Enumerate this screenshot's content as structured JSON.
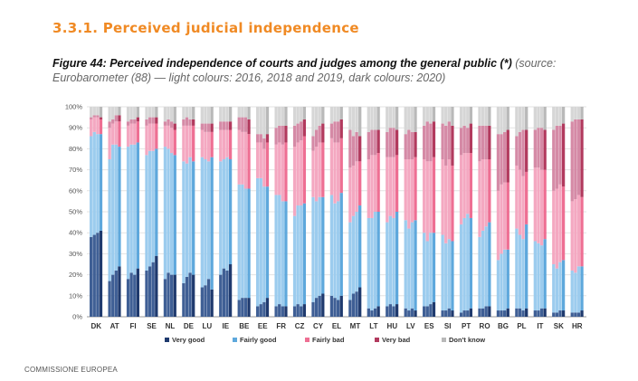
{
  "section_title": "3.3.1. Perceived judicial independence",
  "caption": {
    "label": "Figure 44: Perceived independence of courts and judges among the general public (*)",
    "source": " (source: Eurobarometer (88) — light colours: 2016, 2018 and 2019, dark colours: 2020)"
  },
  "footer": "COMMISSIONE EUROPEA",
  "colors": {
    "very_good": "#1f3a6e",
    "fairly_good": "#5ea8dc",
    "fairly_bad": "#ee6f93",
    "very_bad": "#b23a5e",
    "dont_know": "#b9b9b9",
    "light_very_good": "#3f5f95",
    "light_fairly_good": "#9cccee",
    "light_fairly_bad": "#f4a8c1",
    "light_very_bad": "#d58aa6",
    "light_dont_know": "#d6d6d6"
  },
  "chart_data": {
    "type": "bar",
    "stacked": true,
    "ylim": [
      0,
      100
    ],
    "y_ticks": [
      "0%",
      "10%",
      "20%",
      "30%",
      "40%",
      "50%",
      "60%",
      "70%",
      "80%",
      "90%",
      "100%"
    ],
    "grid": true,
    "legend_position": "bottom",
    "categories": [
      "DK",
      "AT",
      "FI",
      "SE",
      "NL",
      "DE",
      "LU",
      "IE",
      "BE",
      "EE",
      "FR",
      "CZ",
      "CY",
      "EL",
      "MT",
      "LT",
      "HU",
      "LV",
      "ES",
      "SI",
      "PT",
      "RO",
      "BG",
      "PL",
      "IT",
      "SK",
      "HR"
    ],
    "years": [
      "2016",
      "2018",
      "2019",
      "2020"
    ],
    "series": [
      {
        "name": "Very good",
        "key": "very_good"
      },
      {
        "name": "Fairly good",
        "key": "fairly_good"
      },
      {
        "name": "Fairly bad",
        "key": "fairly_bad"
      },
      {
        "name": "Very bad",
        "key": "very_bad"
      },
      {
        "name": "Don't know",
        "key": "dont_know"
      }
    ],
    "values": {
      "DK": [
        [
          38,
          48,
          8,
          1,
          5
        ],
        [
          39,
          49,
          7,
          1,
          4
        ],
        [
          40,
          47,
          8,
          1,
          4
        ],
        [
          41,
          46,
          7,
          1,
          5
        ]
      ],
      "AT": [
        [
          17,
          58,
          15,
          3,
          7
        ],
        [
          20,
          62,
          10,
          2,
          6
        ],
        [
          22,
          60,
          11,
          3,
          4
        ],
        [
          24,
          57,
          12,
          3,
          4
        ]
      ],
      "FI": [
        [
          18,
          63,
          10,
          2,
          7
        ],
        [
          21,
          61,
          10,
          2,
          6
        ],
        [
          20,
          62,
          10,
          2,
          6
        ],
        [
          23,
          60,
          10,
          2,
          5
        ]
      ],
      "SE": [
        [
          22,
          55,
          14,
          3,
          6
        ],
        [
          24,
          55,
          13,
          3,
          5
        ],
        [
          26,
          53,
          13,
          3,
          5
        ],
        [
          29,
          51,
          12,
          3,
          5
        ]
      ],
      "NL": [
        [
          18,
          63,
          10,
          2,
          7
        ],
        [
          21,
          59,
          11,
          3,
          6
        ],
        [
          20,
          58,
          12,
          3,
          7
        ],
        [
          20,
          57,
          12,
          3,
          8
        ]
      ],
      "DE": [
        [
          16,
          58,
          17,
          3,
          6
        ],
        [
          19,
          54,
          18,
          4,
          5
        ],
        [
          21,
          55,
          15,
          3,
          6
        ],
        [
          20,
          54,
          17,
          3,
          6
        ]
      ],
      "LU": [
        [
          14,
          62,
          13,
          3,
          8
        ],
        [
          15,
          60,
          13,
          4,
          8
        ],
        [
          18,
          56,
          14,
          4,
          8
        ],
        [
          13,
          63,
          12,
          4,
          8
        ]
      ],
      "IE": [
        [
          20,
          54,
          15,
          4,
          7
        ],
        [
          23,
          52,
          14,
          4,
          7
        ],
        [
          22,
          54,
          13,
          4,
          7
        ],
        [
          25,
          50,
          14,
          4,
          7
        ]
      ],
      "BE": [
        [
          8,
          55,
          26,
          6,
          5
        ],
        [
          9,
          54,
          25,
          7,
          5
        ],
        [
          9,
          52,
          27,
          7,
          5
        ],
        [
          9,
          52,
          26,
          7,
          6
        ]
      ],
      "EE": [
        [
          5,
          61,
          17,
          4,
          13
        ],
        [
          6,
          60,
          17,
          4,
          13
        ],
        [
          7,
          55,
          18,
          5,
          15
        ],
        [
          9,
          53,
          21,
          4,
          13
        ]
      ],
      "FR": [
        [
          5,
          53,
          24,
          8,
          10
        ],
        [
          6,
          52,
          25,
          8,
          9
        ],
        [
          5,
          50,
          27,
          9,
          9
        ],
        [
          5,
          50,
          28,
          8,
          9
        ]
      ],
      "CZ": [
        [
          5,
          43,
          33,
          10,
          9
        ],
        [
          6,
          47,
          30,
          9,
          8
        ],
        [
          5,
          48,
          31,
          9,
          7
        ],
        [
          6,
          48,
          32,
          8,
          6
        ]
      ],
      "CY": [
        [
          7,
          50,
          22,
          7,
          14
        ],
        [
          9,
          46,
          26,
          8,
          11
        ],
        [
          10,
          47,
          26,
          8,
          9
        ],
        [
          11,
          46,
          26,
          9,
          8
        ]
      ],
      "EL": [
        [
          10,
          48,
          27,
          7,
          8
        ],
        [
          9,
          45,
          29,
          10,
          7
        ],
        [
          8,
          47,
          28,
          10,
          7
        ],
        [
          10,
          49,
          26,
          9,
          6
        ]
      ],
      "MT": [
        [
          8,
          37,
          26,
          18,
          11
        ],
        [
          11,
          37,
          24,
          14,
          14
        ],
        [
          12,
          38,
          24,
          14,
          12
        ],
        [
          14,
          39,
          21,
          12,
          14
        ]
      ],
      "LT": [
        [
          4,
          43,
          28,
          13,
          12
        ],
        [
          3,
          44,
          30,
          12,
          11
        ],
        [
          4,
          46,
          27,
          12,
          11
        ],
        [
          5,
          45,
          28,
          11,
          11
        ]
      ],
      "HU": [
        [
          5,
          40,
          31,
          12,
          12
        ],
        [
          6,
          42,
          28,
          14,
          10
        ],
        [
          5,
          42,
          29,
          14,
          10
        ],
        [
          6,
          44,
          27,
          12,
          11
        ]
      ],
      "LV": [
        [
          4,
          42,
          29,
          12,
          13
        ],
        [
          3,
          39,
          33,
          14,
          11
        ],
        [
          4,
          41,
          30,
          13,
          12
        ],
        [
          3,
          43,
          30,
          12,
          12
        ]
      ],
      "ES": [
        [
          5,
          35,
          35,
          16,
          9
        ],
        [
          5,
          31,
          38,
          19,
          7
        ],
        [
          6,
          34,
          34,
          18,
          8
        ],
        [
          7,
          33,
          36,
          17,
          7
        ]
      ],
      "SI": [
        [
          3,
          36,
          36,
          17,
          8
        ],
        [
          3,
          32,
          37,
          19,
          9
        ],
        [
          4,
          33,
          38,
          18,
          7
        ],
        [
          3,
          33,
          36,
          19,
          9
        ]
      ],
      "PT": [
        [
          2,
          42,
          33,
          13,
          10
        ],
        [
          3,
          44,
          31,
          13,
          9
        ],
        [
          3,
          46,
          29,
          12,
          10
        ],
        [
          4,
          43,
          31,
          14,
          8
        ]
      ],
      "RO": [
        [
          4,
          34,
          36,
          17,
          9
        ],
        [
          4,
          37,
          34,
          16,
          9
        ],
        [
          5,
          38,
          32,
          16,
          9
        ],
        [
          5,
          40,
          30,
          16,
          9
        ]
      ],
      "BG": [
        [
          3,
          24,
          33,
          27,
          13
        ],
        [
          3,
          27,
          33,
          24,
          13
        ],
        [
          3,
          29,
          32,
          24,
          12
        ],
        [
          4,
          28,
          32,
          25,
          11
        ]
      ],
      "PL": [
        [
          4,
          38,
          30,
          14,
          14
        ],
        [
          4,
          35,
          31,
          18,
          12
        ],
        [
          3,
          34,
          30,
          22,
          11
        ],
        [
          4,
          40,
          25,
          20,
          11
        ]
      ],
      "IT": [
        [
          3,
          33,
          35,
          18,
          11
        ],
        [
          3,
          32,
          36,
          19,
          10
        ],
        [
          4,
          30,
          36,
          20,
          10
        ],
        [
          4,
          33,
          33,
          19,
          11
        ]
      ],
      "SK": [
        [
          2,
          23,
          35,
          29,
          11
        ],
        [
          2,
          21,
          38,
          30,
          9
        ],
        [
          3,
          23,
          37,
          28,
          9
        ],
        [
          3,
          24,
          35,
          30,
          8
        ]
      ],
      "HR": [
        [
          2,
          20,
          33,
          38,
          7
        ],
        [
          2,
          19,
          35,
          38,
          6
        ],
        [
          2,
          22,
          34,
          36,
          6
        ],
        [
          3,
          21,
          33,
          37,
          6
        ]
      ]
    }
  }
}
